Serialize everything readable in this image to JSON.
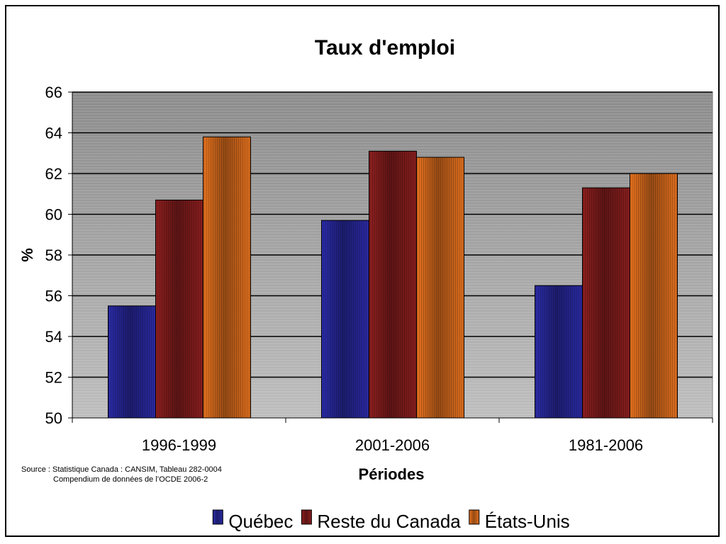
{
  "source_note": {
    "line1": "Source : Statistique Canada : CANSIM, Tableau 282-0004",
    "line2": "Compendium de données de l’OCDE 2006-2"
  },
  "chart_data": {
    "type": "bar",
    "title": "Taux d'emploi",
    "xlabel": "Périodes",
    "ylabel": "%",
    "categories": [
      "1996-1999",
      "2001-2006",
      "1981-2006"
    ],
    "series": [
      {
        "name": "Québec",
        "values": [
          55.5,
          59.7,
          56.5
        ],
        "color": "#2b2ba8"
      },
      {
        "name": "Reste du Canada",
        "values": [
          60.7,
          63.1,
          61.3
        ],
        "color": "#8e1f1f"
      },
      {
        "name": "États-Unis",
        "values": [
          63.8,
          62.8,
          62.0
        ],
        "color": "#e8731f"
      }
    ],
    "ylim": [
      50,
      66
    ],
    "yticks": [
      "50",
      "52",
      "54",
      "56",
      "58",
      "60",
      "62",
      "64",
      "66"
    ],
    "grid": true,
    "legend_position": "bottom"
  }
}
